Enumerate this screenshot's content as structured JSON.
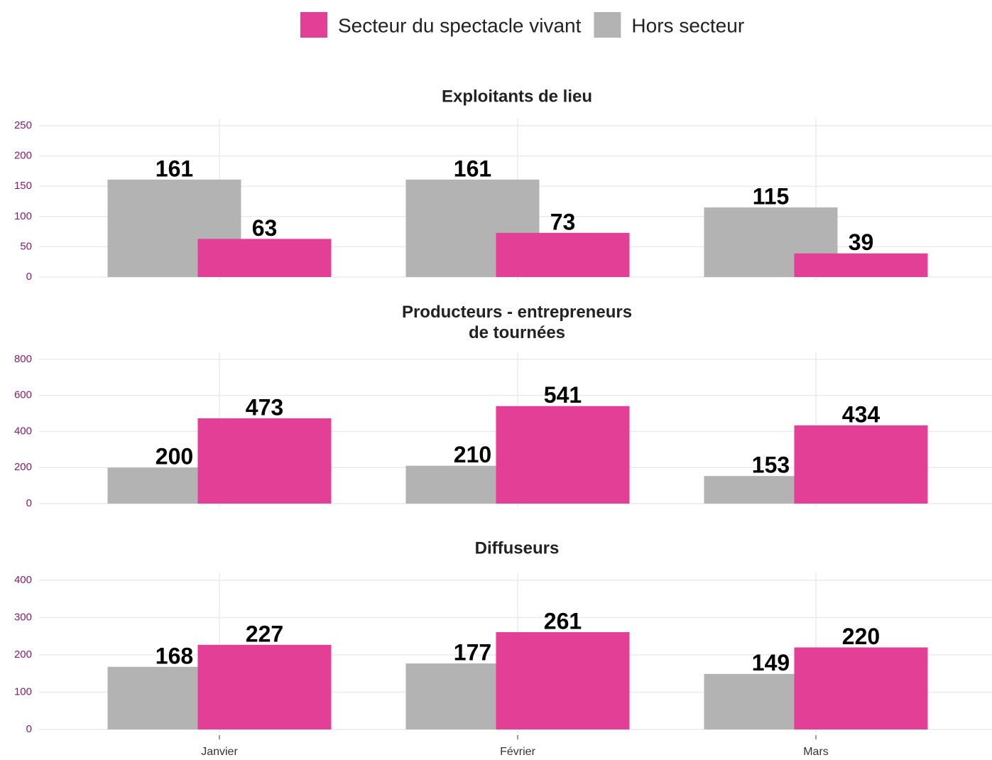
{
  "chart_data": [
    {
      "type": "bar",
      "title": "Exploitants de lieu",
      "series": [
        {
          "name": "Secteur du spectacle vivant",
          "color": "#e33f96",
          "values": [
            63,
            73,
            39
          ]
        },
        {
          "name": "Hors secteur",
          "color": "#b3b3b3",
          "values": [
            161,
            161,
            115
          ]
        }
      ],
      "ylim": [
        0,
        250
      ],
      "yticks": [
        0,
        50,
        100,
        150,
        200,
        250
      ],
      "grid": true
    },
    {
      "type": "bar",
      "title": "Producteurs - entrepreneurs\nde tournées",
      "series": [
        {
          "name": "Secteur du spectacle vivant",
          "color": "#e33f96",
          "values": [
            473,
            541,
            434
          ]
        },
        {
          "name": "Hors secteur",
          "color": "#b3b3b3",
          "values": [
            200,
            210,
            153
          ]
        }
      ],
      "ylim": [
        0,
        800
      ],
      "yticks": [
        0,
        200,
        400,
        600,
        800
      ],
      "grid": true
    },
    {
      "type": "bar",
      "title": "Diffuseurs",
      "categories": [
        "Janvier",
        "Février",
        "Mars"
      ],
      "series": [
        {
          "name": "Secteur du spectacle vivant",
          "color": "#e33f96",
          "values": [
            227,
            261,
            220
          ]
        },
        {
          "name": "Hors secteur",
          "color": "#b3b3b3",
          "values": [
            168,
            177,
            149
          ]
        }
      ],
      "ylim": [
        0,
        400
      ],
      "yticks": [
        0,
        100,
        200,
        300,
        400
      ],
      "grid": true
    }
  ]
}
